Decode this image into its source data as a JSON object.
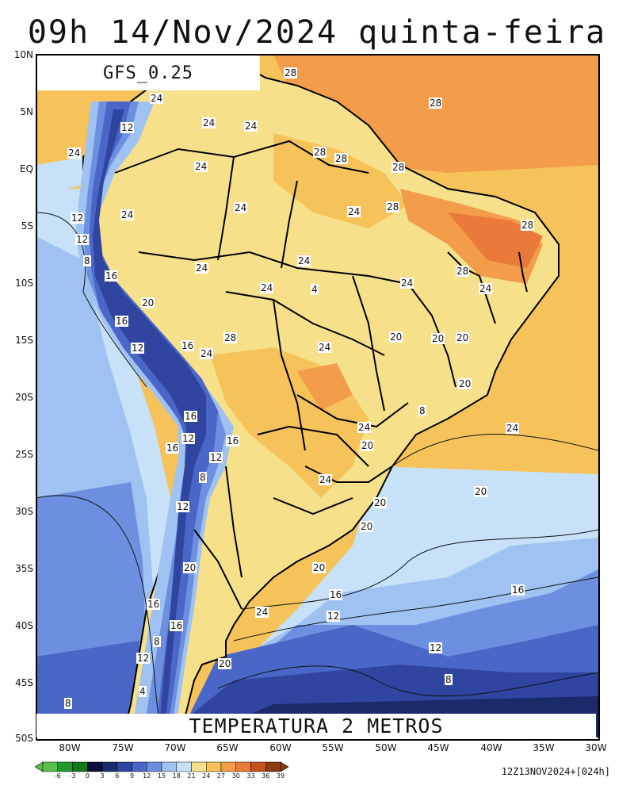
{
  "title": "09h 14/Nov/2024 quinta-feira",
  "model": "GFS_0.25",
  "caption": "TEMPERATURA 2 METROS",
  "run_label": "12Z13NOV2024+[024h]",
  "y_axis": [
    "10N",
    "5N",
    "EQ",
    "5S",
    "10S",
    "15S",
    "20S",
    "25S",
    "30S",
    "35S",
    "40S",
    "45S",
    "50S"
  ],
  "x_axis": [
    "80W",
    "75W",
    "70W",
    "65W",
    "60W",
    "55W",
    "50W",
    "45W",
    "40W",
    "35W",
    "30W"
  ],
  "colorbar": {
    "labels": [
      "-6",
      "-3",
      "0",
      "3",
      "6",
      "9",
      "12",
      "15",
      "18",
      "21",
      "24",
      "27",
      "30",
      "33",
      "36",
      "39"
    ],
    "colors": [
      "#5cbf4a",
      "#229a2b",
      "#0f7a1a",
      "#0a0f3c",
      "#1b2a6b",
      "#2f45a0",
      "#4a67c8",
      "#6d8fe0",
      "#9fc2f2",
      "#c7e2f8",
      "#f6e08a",
      "#f6c25a",
      "#f39c4a",
      "#ea7a3a",
      "#c7521f",
      "#8c3c10"
    ]
  },
  "contour_labels": [
    "28",
    "28",
    "24",
    "24",
    "24",
    "12",
    "24",
    "28",
    "28",
    "28",
    "24",
    "24",
    "24",
    "28",
    "28",
    "12",
    "12",
    "8",
    "16",
    "24",
    "24",
    "28",
    "20",
    "24",
    "24",
    "24",
    "24",
    "4",
    "16",
    "12",
    "16",
    "24",
    "28",
    "24",
    "20",
    "20",
    "20",
    "20",
    "8",
    "16",
    "12",
    "16",
    "12",
    "8",
    "16",
    "24",
    "24",
    "20",
    "20",
    "20",
    "24",
    "20",
    "20",
    "16",
    "16",
    "12",
    "16",
    "8",
    "12",
    "12",
    "4",
    "16",
    "20",
    "8",
    "8",
    "24",
    "12",
    "20"
  ]
}
